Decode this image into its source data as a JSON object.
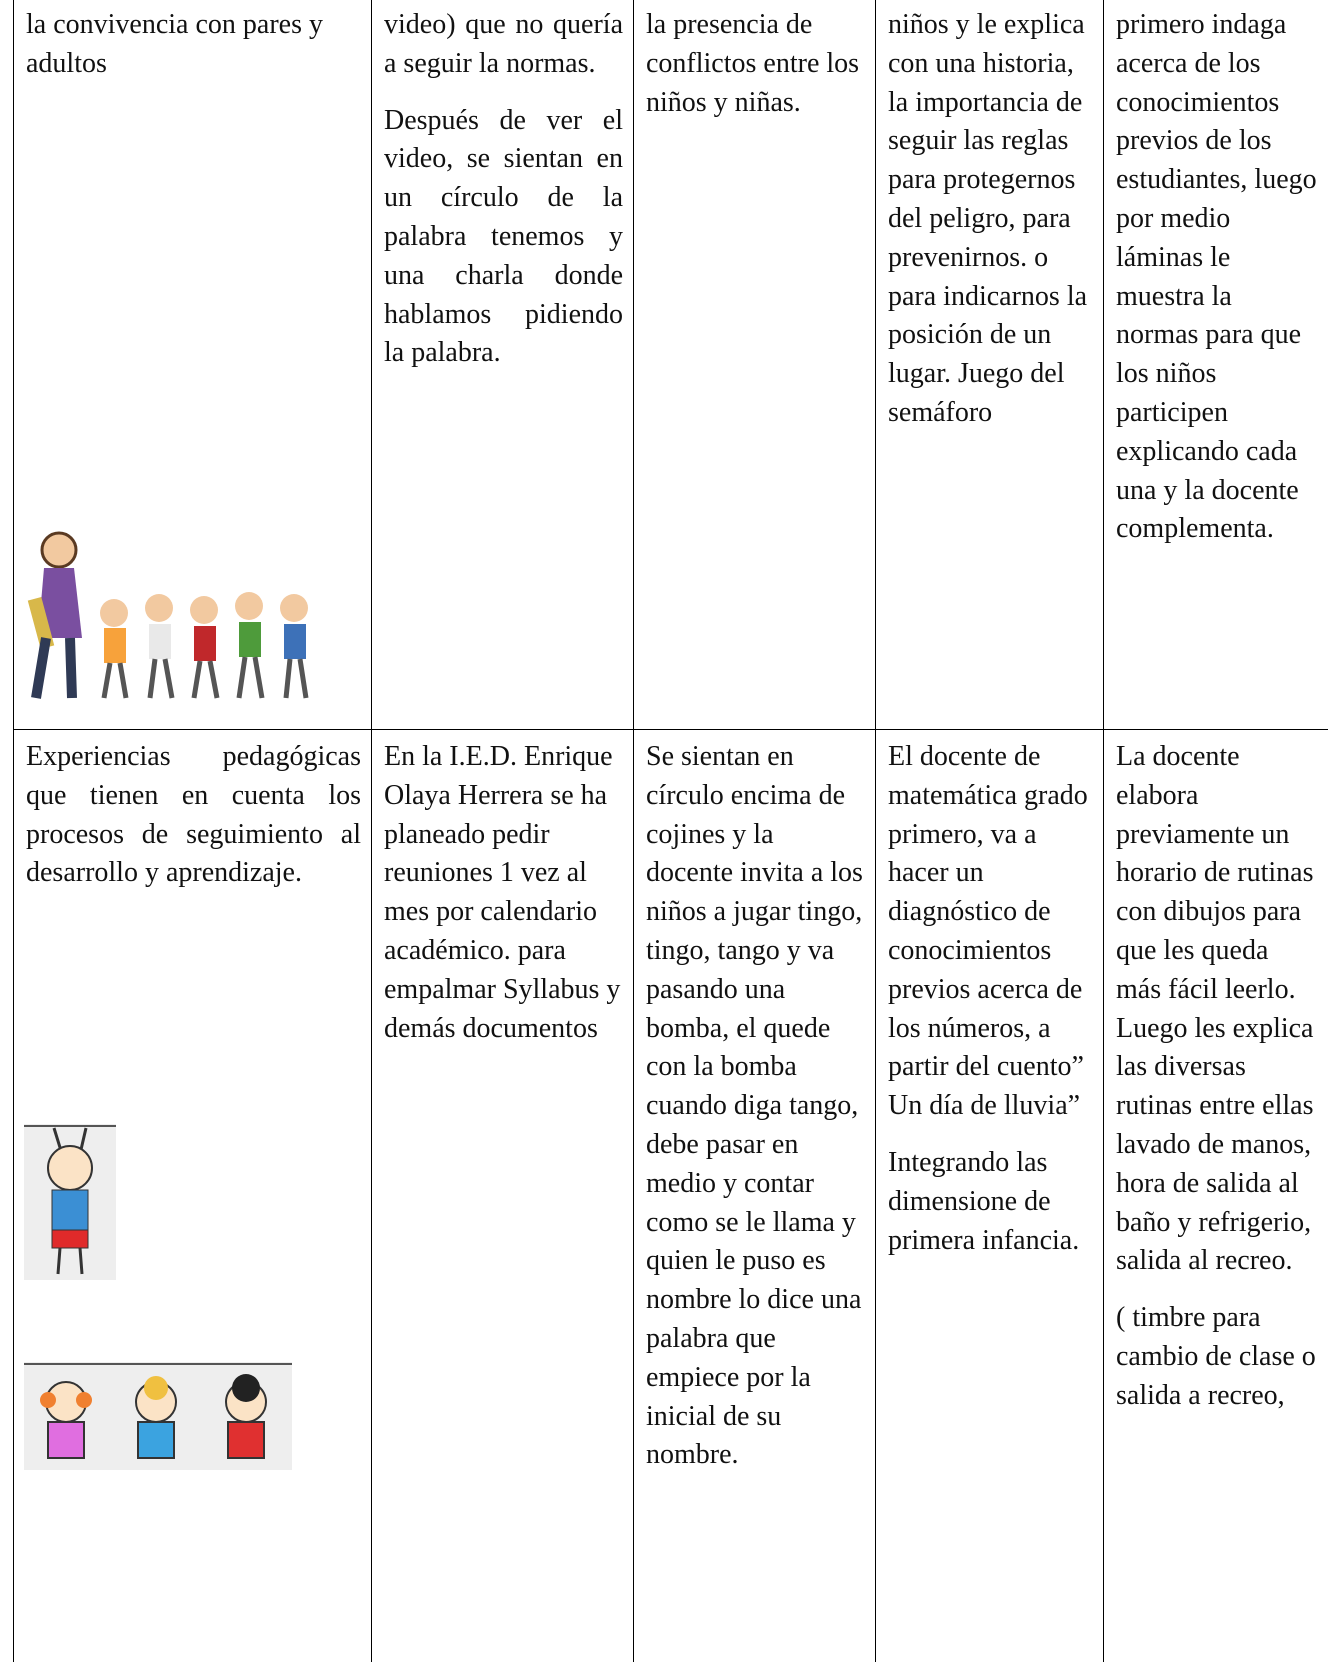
{
  "table": {
    "rows": [
      [
        [
          "la convivencia con pares y adultos"
        ],
        [
          "video) que no quería a seguir la normas.",
          "Después de ver el video, se sientan en un círculo de la palabra tenemos y una charla donde hablamos pidiendo la palabra."
        ],
        [
          "la presencia de conflictos entre los niños y niñas."
        ],
        [
          "niños y le explica con una historia, la importancia de seguir las reglas para protegernos del peligro, para prevenirnos. o para indicarnos la posición de un lugar. Juego del semáforo"
        ],
        [
          "primero indaga acerca de los conocimientos previos de los estudiantes, luego por medio láminas le muestra la normas para que los niños participen explicando cada una y la docente complementa."
        ]
      ],
      [
        [
          "Experiencias pedagógicas que tienen en cuenta los procesos de seguimiento al desarrollo y aprendizaje."
        ],
        [
          "En la I.E.D. Enrique Olaya Herrera se ha planeado pedir reuniones 1 vez al mes por calendario académico. para empalmar Syllabus y demás documentos"
        ],
        [
          "Se sientan en círculo encima de cojines y la docente invita a los niños a jugar tingo, tingo, tango y va pasando una bomba, el quede con la bomba cuando diga tango, debe pasar en medio y contar como se le llama y quien le puso es nombre lo dice una palabra que empiece por la inicial de su nombre."
        ],
        [
          "El docente de matemática grado primero, va a hacer un diagnóstico de conocimientos previos acerca de los números, a partir del cuento” Un día de lluvia”",
          "Integrando las dimensione de primera infancia."
        ],
        [
          "La docente elabora previamente un horario de rutinas con dibujos para que les queda más fácil leerlo. Luego les explica las diversas rutinas entre ellas lavado de manos, hora de salida al baño y refrigerio, salida al recreo.",
          "( timbre para cambio de clase o salida a recreo,"
        ]
      ]
    ]
  }
}
